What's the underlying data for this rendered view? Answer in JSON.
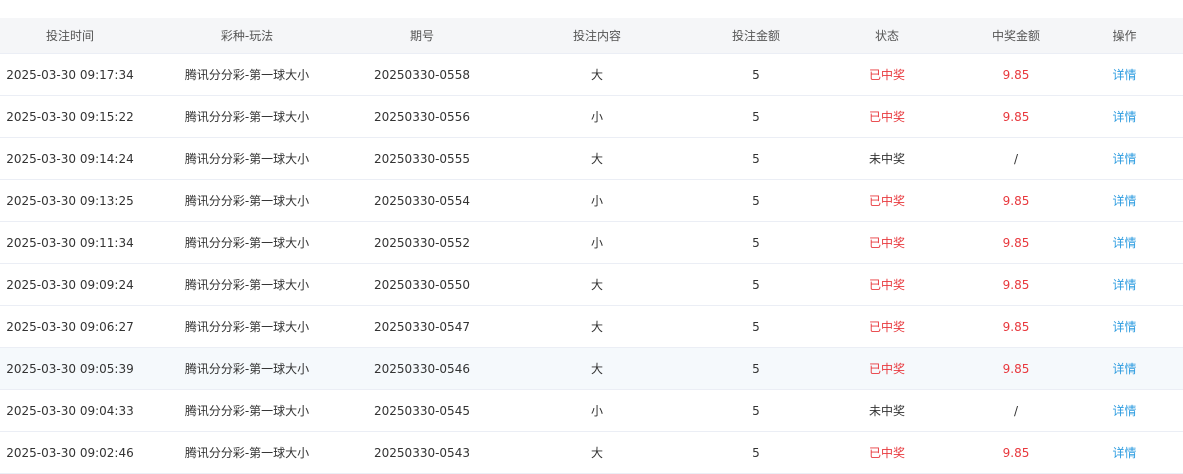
{
  "colors": {
    "won": "#e8383d",
    "link": "#2d9ce0",
    "header_bg": "#f5f6f8"
  },
  "columns": [
    "投注时间",
    "彩种-玩法",
    "期号",
    "投注内容",
    "投注金额",
    "状态",
    "中奖金额",
    "操作"
  ],
  "rows": [
    {
      "time": "2025-03-30 09:17:34",
      "game": "腾讯分分彩-第一球大小",
      "issue": "20250330-0558",
      "content": "大",
      "amount": "5",
      "status": "已中奖",
      "won": true,
      "prize": "9.85",
      "action": "详情"
    },
    {
      "time": "2025-03-30 09:15:22",
      "game": "腾讯分分彩-第一球大小",
      "issue": "20250330-0556",
      "content": "小",
      "amount": "5",
      "status": "已中奖",
      "won": true,
      "prize": "9.85",
      "action": "详情"
    },
    {
      "time": "2025-03-30 09:14:24",
      "game": "腾讯分分彩-第一球大小",
      "issue": "20250330-0555",
      "content": "大",
      "amount": "5",
      "status": "未中奖",
      "won": false,
      "prize": "/",
      "action": "详情"
    },
    {
      "time": "2025-03-30 09:13:25",
      "game": "腾讯分分彩-第一球大小",
      "issue": "20250330-0554",
      "content": "小",
      "amount": "5",
      "status": "已中奖",
      "won": true,
      "prize": "9.85",
      "action": "详情"
    },
    {
      "time": "2025-03-30 09:11:34",
      "game": "腾讯分分彩-第一球大小",
      "issue": "20250330-0552",
      "content": "小",
      "amount": "5",
      "status": "已中奖",
      "won": true,
      "prize": "9.85",
      "action": "详情"
    },
    {
      "time": "2025-03-30 09:09:24",
      "game": "腾讯分分彩-第一球大小",
      "issue": "20250330-0550",
      "content": "大",
      "amount": "5",
      "status": "已中奖",
      "won": true,
      "prize": "9.85",
      "action": "详情"
    },
    {
      "time": "2025-03-30 09:06:27",
      "game": "腾讯分分彩-第一球大小",
      "issue": "20250330-0547",
      "content": "大",
      "amount": "5",
      "status": "已中奖",
      "won": true,
      "prize": "9.85",
      "action": "详情"
    },
    {
      "time": "2025-03-30 09:05:39",
      "game": "腾讯分分彩-第一球大小",
      "issue": "20250330-0546",
      "content": "大",
      "amount": "5",
      "status": "已中奖",
      "won": true,
      "prize": "9.85",
      "action": "详情",
      "hover": true
    },
    {
      "time": "2025-03-30 09:04:33",
      "game": "腾讯分分彩-第一球大小",
      "issue": "20250330-0545",
      "content": "小",
      "amount": "5",
      "status": "未中奖",
      "won": false,
      "prize": "/",
      "action": "详情"
    },
    {
      "time": "2025-03-30 09:02:46",
      "game": "腾讯分分彩-第一球大小",
      "issue": "20250330-0543",
      "content": "大",
      "amount": "5",
      "status": "已中奖",
      "won": true,
      "prize": "9.85",
      "action": "详情"
    }
  ]
}
